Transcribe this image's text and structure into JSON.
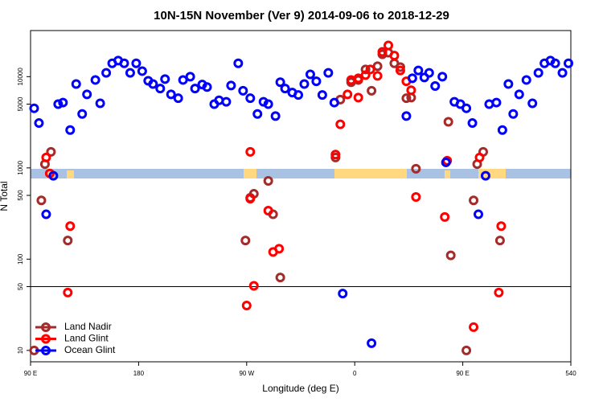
{
  "chart_data": {
    "type": "scatter",
    "title": "10N-15N November (Ver 9)   2014-09-06 to 2018-12-29",
    "x_label": "Longitude (deg E)",
    "y_label": "N Total",
    "log_y": true,
    "hline": 50,
    "legend": "bottom-left",
    "xlim": [
      90,
      540
    ],
    "xticks": [
      {
        "value": 90,
        "label": "90 E"
      },
      180,
      {
        "value": 270,
        "label": "90 W"
      },
      {
        "value": 360,
        "label": "0"
      },
      {
        "value": 450,
        "label": "90 E"
      },
      540
    ],
    "ylim": [
      7.5,
      32000
    ],
    "yticks": [
      10,
      50,
      100,
      500,
      1000,
      5000,
      10000
    ],
    "series": [
      {
        "name": "Land Nadir",
        "color": "#a52a2a",
        "x": [
          93,
          99,
          102,
          107,
          121,
          269,
          273,
          276,
          288,
          292,
          298,
          344,
          348,
          357,
          363,
          369,
          374,
          379,
          383,
          388,
          393,
          398,
          403,
          407,
          411,
          438,
          440,
          453,
          459,
          462,
          467,
          481
        ],
        "values": [
          10,
          440,
          1100,
          1500,
          160,
          160,
          470,
          520,
          720,
          310,
          63,
          1300,
          5600,
          8700,
          9200,
          12000,
          7000,
          13000,
          17600,
          18300,
          14000,
          12700,
          5800,
          5900,
          980,
          3200,
          110,
          10,
          440,
          1100,
          1500,
          160
        ]
      },
      {
        "name": "Land Glint",
        "color": "#ff0000",
        "x": [
          103,
          106,
          123,
          121,
          273,
          273,
          270,
          276,
          288,
          292,
          297,
          344,
          348,
          354,
          357,
          363,
          363,
          369,
          373,
          379,
          383,
          388,
          393,
          398,
          403,
          407,
          411,
          435,
          437,
          459,
          464,
          480,
          482
        ],
        "values": [
          1300,
          870,
          230,
          43,
          1500,
          460,
          31,
          51,
          340,
          120,
          130,
          1400,
          3000,
          6400,
          9200,
          5900,
          9600,
          10400,
          12000,
          10200,
          18700,
          22000,
          17000,
          11700,
          8900,
          7100,
          480,
          290,
          1200,
          18,
          1300,
          43,
          230
        ]
      },
      {
        "name": "Ocean Glint",
        "color": "#0000ff",
        "x": [
          93,
          97,
          103,
          109,
          113,
          117,
          123,
          128,
          133,
          137,
          144,
          148,
          153,
          158,
          163,
          168,
          173,
          178,
          183,
          188,
          192,
          198,
          202,
          207,
          213,
          217,
          223,
          227,
          233,
          237,
          243,
          247,
          253,
          257,
          263,
          267,
          273,
          279,
          284,
          288,
          294,
          298,
          302,
          308,
          313,
          318,
          323,
          328,
          333,
          338,
          343,
          350,
          374,
          403,
          408,
          413,
          418,
          422,
          427,
          433,
          436,
          443,
          448,
          453,
          458,
          463,
          469,
          472,
          478,
          483,
          488,
          492,
          497,
          503,
          508,
          513,
          518,
          523,
          527,
          533,
          538
        ],
        "values": [
          4500,
          3100,
          310,
          820,
          5000,
          5200,
          2600,
          8300,
          3900,
          6400,
          9200,
          5100,
          11000,
          14000,
          15000,
          14000,
          11000,
          14000,
          11500,
          9000,
          8300,
          7400,
          9400,
          6400,
          5800,
          9200,
          10000,
          7400,
          8200,
          7700,
          5000,
          5500,
          5300,
          8000,
          14000,
          7000,
          5800,
          3900,
          5300,
          5000,
          3700,
          8700,
          7400,
          6700,
          6300,
          8300,
          10600,
          8900,
          6300,
          11000,
          5200,
          42,
          12,
          3700,
          9600,
          11700,
          9800,
          11000,
          7900,
          10000,
          1150,
          5300,
          5000,
          4500,
          3100,
          310,
          820,
          5000,
          5200,
          2600,
          8300,
          3900,
          6400,
          9200,
          5100,
          11000,
          14000,
          15000,
          14000,
          11000,
          14000
        ]
      }
    ]
  }
}
